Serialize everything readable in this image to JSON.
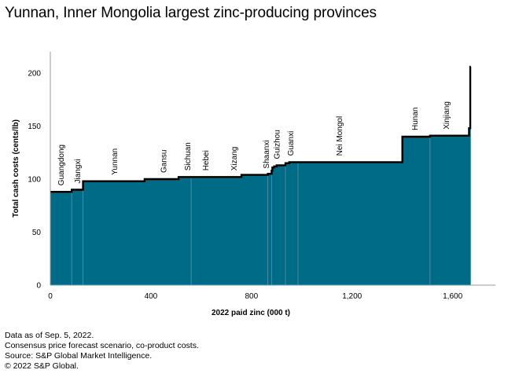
{
  "title": "Yunnan, Inner Mongolia largest zinc-producing provinces",
  "notes": [
    "Data as of Sep. 5, 2022.",
    "Consensus price forecast scenario, co-product costs.",
    "Source: S&P Global Market Intelligence.",
    "© 2022 S&P Global."
  ],
  "colors": {
    "fill": "#006b87",
    "line": "#000000",
    "divider": "#5f93a5",
    "axis": "#999999"
  },
  "chart_data": {
    "type": "area",
    "title": "Yunnan, Inner Mongolia largest zinc-producing provinces",
    "xlabel": "2022 paid zinc (000 t)",
    "ylabel": "Total cash costs (cents/lb)",
    "xlim": [
      0,
      1770
    ],
    "ylim": [
      0,
      220
    ],
    "x_ticks": [
      0,
      400,
      800,
      1200,
      1600
    ],
    "x_tick_labels": [
      "0",
      "400",
      "800",
      "1,200",
      "1,600"
    ],
    "y_ticks": [
      0,
      50,
      100,
      150,
      200
    ],
    "y_tick_labels": [
      "0",
      "50",
      "100",
      "150",
      "200"
    ],
    "grid": false,
    "steps": [
      {
        "x0": 0,
        "x1": 85,
        "y": 88
      },
      {
        "x0": 85,
        "x1": 130,
        "y": 90
      },
      {
        "x0": 130,
        "x1": 375,
        "y": 98
      },
      {
        "x0": 375,
        "x1": 510,
        "y": 100
      },
      {
        "x0": 510,
        "x1": 760,
        "y": 102
      },
      {
        "x0": 760,
        "x1": 865,
        "y": 104
      },
      {
        "x0": 865,
        "x1": 880,
        "y": 105
      },
      {
        "x0": 880,
        "x1": 883,
        "y": 108
      },
      {
        "x0": 883,
        "x1": 890,
        "y": 111
      },
      {
        "x0": 890,
        "x1": 900,
        "y": 112
      },
      {
        "x0": 900,
        "x1": 935,
        "y": 113
      },
      {
        "x0": 935,
        "x1": 950,
        "y": 115
      },
      {
        "x0": 950,
        "x1": 1400,
        "y": 116
      },
      {
        "x0": 1400,
        "x1": 1510,
        "y": 140
      },
      {
        "x0": 1510,
        "x1": 1665,
        "y": 141
      },
      {
        "x0": 1665,
        "x1": 1670,
        "y": 148
      },
      {
        "x0": 1670,
        "x1": 1672,
        "y": 206
      }
    ],
    "province_dividers": [
      85,
      130,
      560,
      865,
      880,
      935,
      985,
      1510
    ],
    "provinces": [
      {
        "name": "Guangdong",
        "x": 42
      },
      {
        "name": "Jiangxi",
        "x": 108
      },
      {
        "name": "Yunnan",
        "x": 255
      },
      {
        "name": "Gansu",
        "x": 450
      },
      {
        "name": "Sichuan",
        "x": 545
      },
      {
        "name": "Hebei",
        "x": 618
      },
      {
        "name": "Xizang",
        "x": 730
      },
      {
        "name": "Shaanxi",
        "x": 858
      },
      {
        "name": "Guizhou",
        "x": 900
      },
      {
        "name": "Guanxi",
        "x": 955
      },
      {
        "name": "Nei Mongol",
        "x": 1150
      },
      {
        "name": "Hunan",
        "x": 1450
      },
      {
        "name": "Xinjiang",
        "x": 1575
      }
    ]
  }
}
